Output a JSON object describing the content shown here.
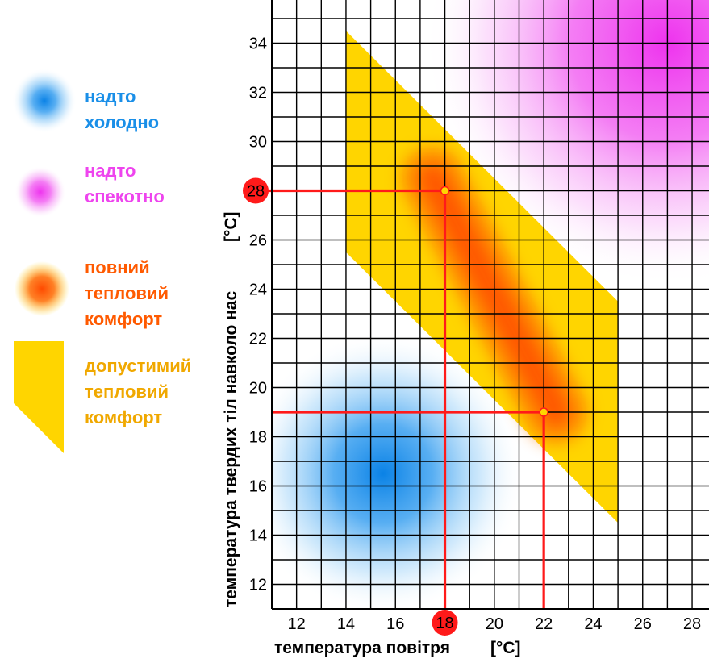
{
  "legend": [
    {
      "id": "cold",
      "label": "надто\nхолодно",
      "color": "#1a8fe8"
    },
    {
      "id": "hot",
      "label": "надто\nспекотно",
      "color": "#ee44ee"
    },
    {
      "id": "comfort",
      "label": "повний\nтепловий\nкомфорт",
      "color": "#ff5a00"
    },
    {
      "id": "acceptable",
      "label": "допустимий\nтепловий\nкомфорт",
      "color": "#f5b800"
    }
  ],
  "chart_data": {
    "type": "area",
    "xlabel": "температура повітря",
    "ylabel": "температура твердих тіл навколо нас",
    "x_unit": "[°C]",
    "y_unit": "[°C]",
    "xlim": [
      11,
      29
    ],
    "ylim": [
      11,
      35
    ],
    "x_ticks": [
      12,
      14,
      16,
      18,
      20,
      22,
      24,
      26,
      28
    ],
    "y_ticks": [
      12,
      14,
      16,
      18,
      20,
      22,
      24,
      26,
      28,
      30,
      32,
      34
    ],
    "grid": true,
    "regions": [
      {
        "name": "надто холодно",
        "center": [
          15.5,
          16.5
        ],
        "color": "#1a8fe8"
      },
      {
        "name": "надто спекотно",
        "center": [
          27,
          34
        ],
        "color": "#ee44ee"
      },
      {
        "name": "допустимий тепловий комфорт",
        "polygon": [
          [
            14,
            34.5
          ],
          [
            14,
            25.5
          ],
          [
            25,
            14.5
          ],
          [
            25,
            23.5
          ]
        ],
        "color": "#ffd500"
      },
      {
        "name": "повний тепловий комфорт",
        "polyline": [
          [
            17.5,
            28.5
          ],
          [
            22.5,
            19
          ]
        ],
        "color": "#ff5200"
      }
    ],
    "points": [
      [
        18,
        28
      ],
      [
        22,
        19
      ]
    ],
    "highlighted": {
      "x": "18",
      "y": "28"
    },
    "colors": {
      "grid": "#000000",
      "guide": "#ff1a1a",
      "marker": "#ff1a1a",
      "point_fill": "#ffd500"
    }
  }
}
